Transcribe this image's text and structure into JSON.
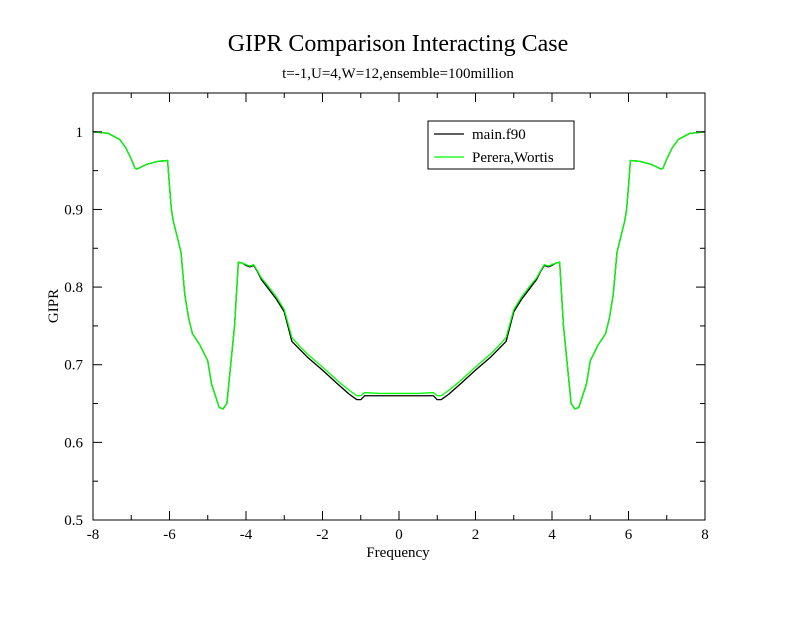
{
  "chart_data": {
    "type": "line",
    "title": "GIPR Comparison Interacting Case",
    "subtitle": "t=-1,U=4,W=12,ensemble=100million",
    "xlabel": "Frequency",
    "ylabel": "GIPR",
    "xlim": [
      -8,
      8
    ],
    "ylim": [
      0.5,
      1.05
    ],
    "x_ticks": [
      -8,
      -6,
      -4,
      -2,
      0,
      2,
      4,
      6,
      8
    ],
    "x_tick_labels": [
      "-8",
      "-6",
      "-4",
      "-2",
      "0",
      "2",
      "4",
      "6",
      "8"
    ],
    "y_ticks": [
      0.5,
      0.6,
      0.7,
      0.8,
      0.9,
      1.0
    ],
    "y_tick_labels": [
      "0.5",
      "0.6",
      "0.7",
      "0.8",
      "0.9",
      "1"
    ],
    "grid": false,
    "legend_position": "top-right",
    "series": [
      {
        "name": "main.f90",
        "color": "#000000",
        "x": [
          -8,
          -7.6,
          -7.3,
          -7.15,
          -7.0,
          -6.9,
          -6.85,
          -6.6,
          -6.3,
          -6.05,
          -6.0,
          -5.95,
          -5.9,
          -5.8,
          -5.7,
          -5.6,
          -5.5,
          -5.4,
          -5.2,
          -5.0,
          -4.9,
          -4.8,
          -4.7,
          -4.6,
          -4.5,
          -4.4,
          -4.3,
          -4.2,
          -4.1,
          -4.0,
          -3.9,
          -3.8,
          -3.7,
          -3.6,
          -3.4,
          -3.2,
          -3.0,
          -2.8,
          -2.6,
          -2.4,
          -2.0,
          -1.6,
          -1.3,
          -1.1,
          -1.0,
          -0.9,
          -0.85,
          -0.5,
          0,
          0.5,
          0.85,
          0.9,
          1.0,
          1.1,
          1.3,
          1.6,
          2.0,
          2.4,
          2.6,
          2.8,
          3.0,
          3.2,
          3.4,
          3.6,
          3.7,
          3.8,
          3.9,
          4.0,
          4.1,
          4.2,
          4.3,
          4.4,
          4.5,
          4.6,
          4.7,
          4.8,
          4.9,
          5.0,
          5.2,
          5.4,
          5.5,
          5.6,
          5.7,
          5.8,
          5.9,
          5.95,
          6.0,
          6.05,
          6.3,
          6.6,
          6.85,
          6.9,
          7.0,
          7.15,
          7.3,
          7.6,
          8
        ],
        "y": [
          1.0,
          0.998,
          0.99,
          0.98,
          0.965,
          0.953,
          0.952,
          0.958,
          0.962,
          0.963,
          0.93,
          0.9,
          0.885,
          0.865,
          0.845,
          0.79,
          0.76,
          0.74,
          0.725,
          0.705,
          0.675,
          0.66,
          0.645,
          0.643,
          0.65,
          0.7,
          0.75,
          0.832,
          0.831,
          0.828,
          0.826,
          0.828,
          0.82,
          0.81,
          0.797,
          0.784,
          0.768,
          0.73,
          0.72,
          0.71,
          0.693,
          0.675,
          0.662,
          0.655,
          0.655,
          0.66,
          0.66,
          0.66,
          0.66,
          0.66,
          0.66,
          0.66,
          0.655,
          0.655,
          0.662,
          0.675,
          0.693,
          0.71,
          0.72,
          0.73,
          0.768,
          0.784,
          0.797,
          0.81,
          0.82,
          0.828,
          0.826,
          0.828,
          0.831,
          0.832,
          0.75,
          0.7,
          0.65,
          0.643,
          0.645,
          0.66,
          0.675,
          0.705,
          0.725,
          0.74,
          0.76,
          0.79,
          0.845,
          0.865,
          0.885,
          0.9,
          0.93,
          0.963,
          0.962,
          0.958,
          0.952,
          0.953,
          0.965,
          0.98,
          0.99,
          0.998,
          1.0
        ]
      },
      {
        "name": "Perera,Wortis",
        "color": "#00ff00",
        "x": [
          -8,
          -7.6,
          -7.3,
          -7.15,
          -7.0,
          -6.9,
          -6.85,
          -6.6,
          -6.3,
          -6.05,
          -6.0,
          -5.95,
          -5.9,
          -5.8,
          -5.7,
          -5.6,
          -5.5,
          -5.4,
          -5.2,
          -5.0,
          -4.9,
          -4.8,
          -4.7,
          -4.6,
          -4.5,
          -4.4,
          -4.3,
          -4.2,
          -4.1,
          -4.0,
          -3.9,
          -3.8,
          -3.7,
          -3.6,
          -3.4,
          -3.2,
          -3.0,
          -2.8,
          -2.6,
          -2.4,
          -2.0,
          -1.6,
          -1.3,
          -1.1,
          -1.0,
          -0.9,
          -0.85,
          -0.5,
          0,
          0.5,
          0.85,
          0.9,
          1.0,
          1.1,
          1.3,
          1.6,
          2.0,
          2.4,
          2.6,
          2.8,
          3.0,
          3.2,
          3.4,
          3.6,
          3.7,
          3.8,
          3.9,
          4.0,
          4.1,
          4.2,
          4.3,
          4.4,
          4.5,
          4.6,
          4.7,
          4.8,
          4.9,
          5.0,
          5.2,
          5.4,
          5.5,
          5.6,
          5.7,
          5.8,
          5.9,
          5.95,
          6.0,
          6.05,
          6.3,
          6.6,
          6.85,
          6.9,
          7.0,
          7.15,
          7.3,
          7.6,
          8
        ],
        "y": [
          1.0,
          0.998,
          0.99,
          0.98,
          0.965,
          0.953,
          0.952,
          0.958,
          0.962,
          0.963,
          0.93,
          0.9,
          0.885,
          0.865,
          0.845,
          0.79,
          0.76,
          0.74,
          0.725,
          0.705,
          0.675,
          0.66,
          0.645,
          0.643,
          0.65,
          0.7,
          0.75,
          0.832,
          0.831,
          0.829,
          0.827,
          0.829,
          0.821,
          0.812,
          0.8,
          0.787,
          0.771,
          0.735,
          0.724,
          0.714,
          0.697,
          0.679,
          0.667,
          0.66,
          0.66,
          0.664,
          0.664,
          0.663,
          0.663,
          0.663,
          0.664,
          0.664,
          0.66,
          0.66,
          0.667,
          0.679,
          0.697,
          0.714,
          0.724,
          0.735,
          0.771,
          0.787,
          0.8,
          0.812,
          0.821,
          0.829,
          0.827,
          0.829,
          0.831,
          0.832,
          0.75,
          0.7,
          0.65,
          0.643,
          0.645,
          0.66,
          0.675,
          0.705,
          0.725,
          0.74,
          0.76,
          0.79,
          0.845,
          0.865,
          0.885,
          0.9,
          0.93,
          0.963,
          0.962,
          0.958,
          0.952,
          0.953,
          0.965,
          0.98,
          0.99,
          0.998,
          1.0
        ]
      }
    ]
  }
}
